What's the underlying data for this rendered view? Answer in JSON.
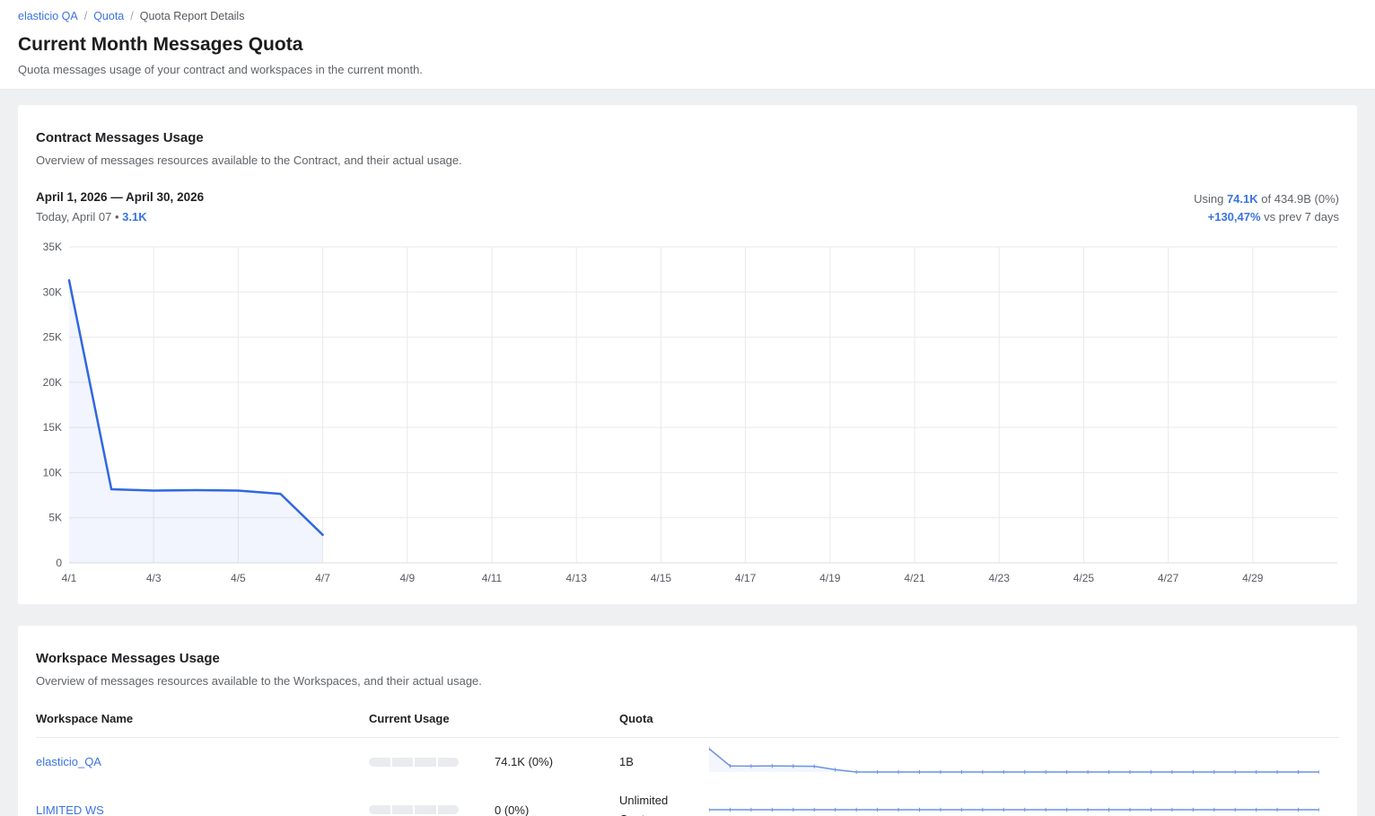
{
  "breadcrumb": {
    "separator": "/",
    "items": [
      {
        "label": "elasticio QA"
      },
      {
        "label": "Quota"
      },
      {
        "label": "Quota Report Details"
      }
    ]
  },
  "page": {
    "title": "Current Month Messages Quota",
    "subtitle": "Quota messages usage of your contract and workspaces in the current month."
  },
  "contract": {
    "title": "Contract Messages Usage",
    "subtitle": "Overview of messages resources available to the Contract, and their actual usage.",
    "date_range": "April 1, 2026 — April 30, 2026",
    "today_label": "Today, April 07",
    "bullet": "•",
    "today_value": "3.1K",
    "using_prefix": "Using",
    "using_value": "74.1K",
    "using_suffix": "of 434.9B (0%)",
    "trend_value": "+130,47%",
    "trend_suffix": "vs prev 7 days"
  },
  "chart_data": [
    {
      "id": "contract-usage-chart",
      "type": "area",
      "title": "Contract Messages Usage (daily messages, April 2026)",
      "x": [
        "4/1",
        "4/2",
        "4/3",
        "4/4",
        "4/5",
        "4/6",
        "4/7"
      ],
      "values": [
        31300,
        8150,
        8000,
        8050,
        8000,
        7650,
        3100
      ],
      "x_domain_days": 30,
      "x_tick_labels": [
        "4/1",
        "4/3",
        "4/5",
        "4/7",
        "4/9",
        "4/11",
        "4/13",
        "4/15",
        "4/17",
        "4/19",
        "4/21",
        "4/23",
        "4/25",
        "4/27",
        "4/29"
      ],
      "y_tick_labels": [
        "0",
        "5K",
        "10K",
        "15K",
        "20K",
        "25K",
        "30K",
        "35K"
      ],
      "ylim": [
        0,
        35000
      ],
      "grid": true,
      "legend": "none",
      "xlabel": "",
      "ylabel": ""
    },
    {
      "id": "sparkline-elasticio-qa",
      "type": "line",
      "values": [
        31300,
        8150,
        8000,
        8050,
        8000,
        7650,
        3100,
        0,
        0,
        0,
        0,
        0,
        0,
        0,
        0,
        0,
        0,
        0,
        0,
        0,
        0,
        0,
        0,
        0,
        0,
        0,
        0,
        0,
        0,
        0
      ],
      "ylim": [
        0,
        31300
      ]
    },
    {
      "id": "sparkline-limited-ws",
      "type": "line",
      "values": [
        0,
        0,
        0,
        0,
        0,
        0,
        0,
        0,
        0,
        0,
        0,
        0,
        0,
        0,
        0,
        0,
        0,
        0,
        0,
        0,
        0,
        0,
        0,
        0,
        0,
        0,
        0,
        0,
        0,
        0
      ],
      "ylim": [
        0,
        31300
      ]
    }
  ],
  "workspaces": {
    "title": "Workspace Messages Usage",
    "subtitle": "Overview of messages resources available to the Workspaces, and their actual usage.",
    "columns": [
      "Workspace Name",
      "Current Usage",
      "Quota"
    ],
    "rows": [
      {
        "name": "elasticio_QA",
        "usage": "74.1K (0%)",
        "quota": "1B"
      },
      {
        "name": "LIMITED WS",
        "usage": "0 (0%)",
        "quota": "Unlimited Quota"
      }
    ]
  },
  "colors": {
    "accent_blue": "#3b73e0",
    "chart_line": "#2f68e0",
    "chart_fill": "rgba(66,110,222,0.07)",
    "sparkline": "#6a92e5",
    "grid_line": "#e9eaec",
    "axis_text": "#565a60",
    "page_bg": "#eef0f2",
    "progress_segment": "#e9ebee"
  }
}
